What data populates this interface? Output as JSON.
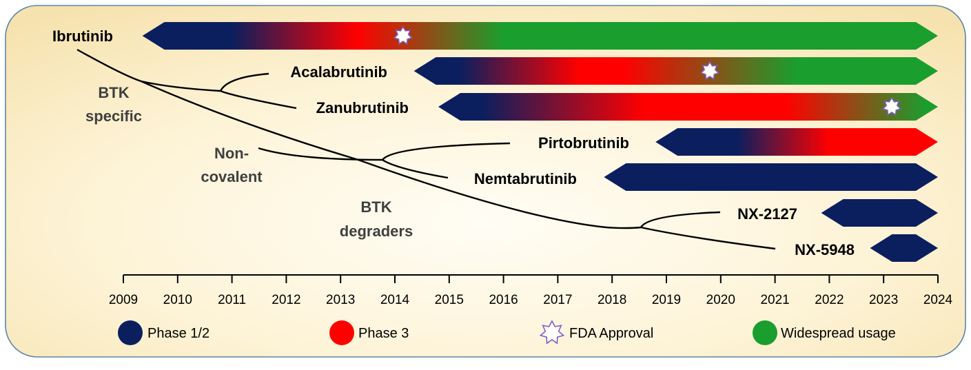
{
  "colors": {
    "phase12": "#0b1f5e",
    "phase3": "#ff0000",
    "widespread": "#1a9e2e",
    "star_stroke": "#7b5ec4"
  },
  "axis": {
    "years": [
      "2009",
      "2010",
      "2011",
      "2012",
      "2013",
      "2014",
      "2015",
      "2016",
      "2017",
      "2018",
      "2019",
      "2020",
      "2021",
      "2022",
      "2023",
      "2024"
    ]
  },
  "drugs": [
    {
      "name": "Ibrutinib",
      "start": 2009.35,
      "end": 2024,
      "stops": [
        {
          "year": 2009.35,
          "c": "phase12"
        },
        {
          "year": 2011.0,
          "c": "phase12"
        },
        {
          "year": 2013.3,
          "c": "phase3"
        },
        {
          "year": 2016.0,
          "c": "widespread"
        },
        {
          "year": 2024,
          "c": "widespread"
        }
      ],
      "approval": 2014.15
    },
    {
      "name": "Acalabrutinib",
      "start": 2014.35,
      "end": 2024,
      "stops": [
        {
          "year": 2014.35,
          "c": "phase12"
        },
        {
          "year": 2015.2,
          "c": "phase12"
        },
        {
          "year": 2017.4,
          "c": "phase3"
        },
        {
          "year": 2018.2,
          "c": "phase3"
        },
        {
          "year": 2021.4,
          "c": "widespread"
        },
        {
          "year": 2024,
          "c": "widespread"
        }
      ],
      "approval": 2019.8
    },
    {
      "name": "Zanubrutinib",
      "start": 2014.8,
      "end": 2024,
      "stops": [
        {
          "year": 2014.8,
          "c": "phase12"
        },
        {
          "year": 2015.6,
          "c": "phase12"
        },
        {
          "year": 2018.6,
          "c": "phase3"
        },
        {
          "year": 2021.2,
          "c": "phase3"
        },
        {
          "year": 2023.8,
          "c": "widespread"
        },
        {
          "year": 2024,
          "c": "widespread"
        }
      ],
      "approval": 2023.15
    },
    {
      "name": "Pirtobrutinib",
      "start": 2018.8,
      "end": 2024,
      "stops": [
        {
          "year": 2018.8,
          "c": "phase12"
        },
        {
          "year": 2020.3,
          "c": "phase12"
        },
        {
          "year": 2022.0,
          "c": "phase3"
        },
        {
          "year": 2024,
          "c": "phase3"
        }
      ],
      "approval": null
    },
    {
      "name": "Nemtabrutinib",
      "start": 2017.85,
      "end": 2024,
      "stops": [
        {
          "year": 2017.85,
          "c": "phase12"
        },
        {
          "year": 2024,
          "c": "phase12"
        }
      ],
      "approval": null
    },
    {
      "name": "NX-2127",
      "start": 2021.85,
      "end": 2024,
      "stops": [
        {
          "year": 2021.85,
          "c": "phase12"
        },
        {
          "year": 2024,
          "c": "phase12"
        }
      ],
      "approval": null
    },
    {
      "name": "NX-5948",
      "start": 2022.75,
      "end": 2024,
      "stops": [
        {
          "year": 2022.75,
          "c": "phase12"
        },
        {
          "year": 2024,
          "c": "phase12"
        }
      ],
      "approval": null
    }
  ],
  "branch_labels": {
    "btk_specific_1": "BTK",
    "btk_specific_2": "specific",
    "non_covalent_1": "Non-",
    "non_covalent_2": "covalent",
    "degraders_1": "BTK",
    "degraders_2": "degraders"
  },
  "legend": {
    "phase12": "Phase 1/2",
    "phase3": "Phase 3",
    "approval": "FDA Approval",
    "widespread": "Widespread usage"
  }
}
